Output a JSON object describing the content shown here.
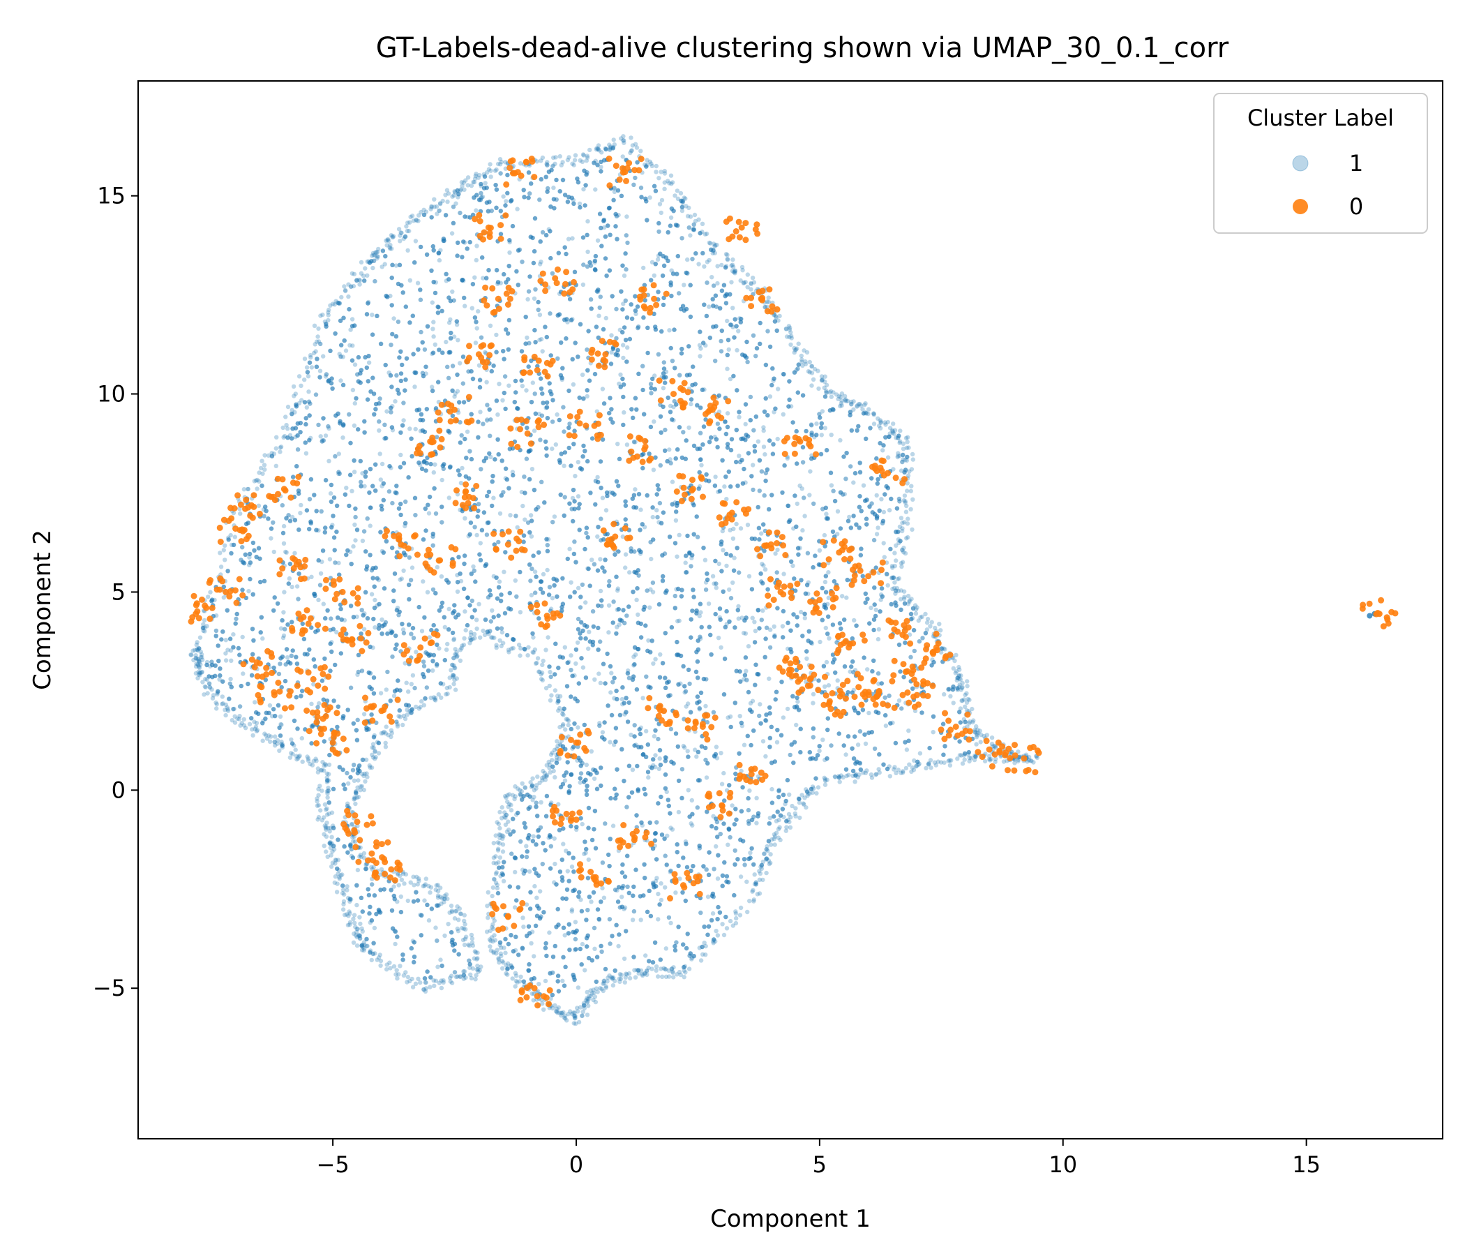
{
  "chart_data": {
    "type": "scatter",
    "title": "GT-Labels-dead-alive clustering shown via UMAP_30_0.1_corr",
    "xlabel": "Component 1",
    "ylabel": "Component 2",
    "xlim": [
      -9,
      17.8
    ],
    "ylim": [
      -8.8,
      17.9
    ],
    "xticks": [
      -5,
      0,
      5,
      10,
      15
    ],
    "yticks": [
      -5,
      0,
      5,
      10,
      15
    ],
    "xtick_labels": [
      "−5",
      "0",
      "5",
      "10",
      "15"
    ],
    "ytick_labels": [
      "−5",
      "0",
      "5",
      "10",
      "15"
    ],
    "grid": false,
    "legend": {
      "title": "Cluster Label",
      "position": "top-right",
      "entries": [
        "1",
        "0"
      ]
    },
    "series": [
      {
        "name": "1",
        "color": "#1f77b4",
        "alpha": 0.3,
        "regions": [
          {
            "label": "main-body",
            "points": [
              [
                -7.8,
                3.6
              ],
              [
                -7.0,
                7.0
              ],
              [
                -6.0,
                9.0
              ],
              [
                -5.2,
                11.8
              ],
              [
                -4.2,
                13.4
              ],
              [
                -3.5,
                14.2
              ],
              [
                -2.5,
                15.2
              ],
              [
                -1.5,
                15.8
              ],
              [
                0.0,
                15.9
              ],
              [
                1.0,
                16.4
              ],
              [
                2.0,
                15.2
              ],
              [
                3.0,
                13.4
              ],
              [
                3.8,
                12.6
              ],
              [
                4.5,
                11.2
              ],
              [
                5.2,
                10.0
              ],
              [
                6.0,
                9.6
              ],
              [
                6.8,
                8.8
              ],
              [
                6.8,
                6.8
              ],
              [
                6.5,
                5.2
              ],
              [
                7.4,
                4.0
              ],
              [
                7.9,
                2.8
              ],
              [
                8.1,
                1.6
              ],
              [
                8.8,
                0.9
              ],
              [
                9.4,
                0.8
              ],
              [
                8.0,
                0.8
              ],
              [
                6.6,
                0.5
              ],
              [
                5.0,
                0.2
              ],
              [
                4.2,
                -1.0
              ],
              [
                3.6,
                -2.8
              ],
              [
                2.2,
                -4.6
              ],
              [
                1.2,
                -4.6
              ],
              [
                0.4,
                -5.0
              ],
              [
                0.0,
                -5.8
              ],
              [
                -0.6,
                -5.4
              ],
              [
                -1.4,
                -4.6
              ],
              [
                -1.8,
                -3.6
              ],
              [
                -1.6,
                -1.5
              ],
              [
                -1.4,
                -0.2
              ],
              [
                -0.6,
                0.4
              ],
              [
                -0.2,
                1.6
              ],
              [
                -0.8,
                3.4
              ],
              [
                -2.2,
                4.0
              ],
              [
                -2.6,
                2.6
              ],
              [
                -3.8,
                1.6
              ],
              [
                -4.4,
                0.4
              ],
              [
                -4.7,
                -0.8
              ],
              [
                -4.2,
                -2.0
              ],
              [
                -3.0,
                -2.4
              ],
              [
                -2.4,
                -3.2
              ],
              [
                -2.0,
                -4.6
              ],
              [
                -3.2,
                -5.0
              ],
              [
                -4.4,
                -4.0
              ],
              [
                -4.6,
                -3.2
              ],
              [
                -5.0,
                -1.8
              ],
              [
                -5.2,
                -0.6
              ],
              [
                -5.2,
                0.6
              ],
              [
                -6.2,
                1.2
              ],
              [
                -7.2,
                2.0
              ],
              [
                -7.8,
                3.0
              ]
            ]
          },
          {
            "label": "outlier-right",
            "points": [
              [
                16.3,
                4.4
              ],
              [
                16.4,
                4.45
              ]
            ]
          }
        ]
      },
      {
        "name": "0",
        "color": "#ff7f0e",
        "alpha": 0.9,
        "points": [
          [
            -7.6,
            4.6
          ],
          [
            -7.2,
            5.0
          ],
          [
            -7.0,
            6.6
          ],
          [
            -6.8,
            7.1
          ],
          [
            -6.5,
            3.2
          ],
          [
            -6.2,
            2.4
          ],
          [
            -6.0,
            7.6
          ],
          [
            -5.8,
            5.6
          ],
          [
            -5.5,
            4.2
          ],
          [
            -5.4,
            2.8
          ],
          [
            -5.2,
            1.8
          ],
          [
            -5.0,
            1.2
          ],
          [
            -4.8,
            5.0
          ],
          [
            -4.6,
            3.8
          ],
          [
            -4.5,
            -0.8
          ],
          [
            -4.2,
            -1.6
          ],
          [
            -4.0,
            2.0
          ],
          [
            -3.8,
            -2.0
          ],
          [
            -3.6,
            6.2
          ],
          [
            -3.2,
            3.6
          ],
          [
            -3.0,
            8.8
          ],
          [
            -2.8,
            5.8
          ],
          [
            -2.5,
            9.6
          ],
          [
            -2.2,
            7.4
          ],
          [
            -2.0,
            11.0
          ],
          [
            -1.8,
            14.2
          ],
          [
            -1.6,
            12.4
          ],
          [
            -1.4,
            -3.2
          ],
          [
            -1.4,
            6.2
          ],
          [
            -1.2,
            15.6
          ],
          [
            -1.0,
            9.0
          ],
          [
            -0.8,
            -5.2
          ],
          [
            -0.8,
            10.6
          ],
          [
            -0.6,
            4.4
          ],
          [
            -0.4,
            12.8
          ],
          [
            -0.2,
            -0.6
          ],
          [
            0.0,
            1.2
          ],
          [
            0.2,
            9.2
          ],
          [
            0.4,
            -2.2
          ],
          [
            0.6,
            11.0
          ],
          [
            0.8,
            6.4
          ],
          [
            1.0,
            15.6
          ],
          [
            1.2,
            -1.2
          ],
          [
            1.4,
            8.6
          ],
          [
            1.6,
            12.4
          ],
          [
            1.8,
            2.0
          ],
          [
            2.0,
            10.0
          ],
          [
            2.2,
            -2.4
          ],
          [
            2.4,
            7.6
          ],
          [
            2.6,
            1.6
          ],
          [
            2.8,
            9.6
          ],
          [
            3.0,
            -0.4
          ],
          [
            3.2,
            7.0
          ],
          [
            3.4,
            14.2
          ],
          [
            3.6,
            0.4
          ],
          [
            3.8,
            12.4
          ],
          [
            4.0,
            6.2
          ],
          [
            4.2,
            5.0
          ],
          [
            4.4,
            3.2
          ],
          [
            4.6,
            8.8
          ],
          [
            4.8,
            2.8
          ],
          [
            5.0,
            4.8
          ],
          [
            5.2,
            2.2
          ],
          [
            5.4,
            6.0
          ],
          [
            5.6,
            3.6
          ],
          [
            5.8,
            2.6
          ],
          [
            6.0,
            5.4
          ],
          [
            6.2,
            2.4
          ],
          [
            6.4,
            8.0
          ],
          [
            6.6,
            4.0
          ],
          [
            6.8,
            3.0
          ],
          [
            7.0,
            2.4
          ],
          [
            7.4,
            3.6
          ],
          [
            7.8,
            1.6
          ],
          [
            8.6,
            0.9
          ],
          [
            9.2,
            0.8
          ],
          [
            16.5,
            4.45
          ]
        ]
      }
    ]
  }
}
